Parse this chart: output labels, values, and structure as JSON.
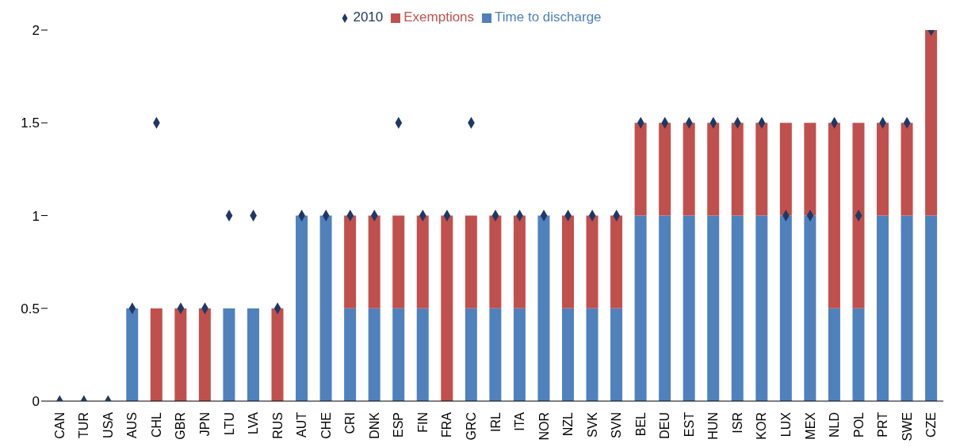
{
  "chart_data": {
    "type": "bar",
    "stacked": true,
    "categories": [
      "CAN",
      "TUR",
      "USA",
      "AUS",
      "CHL",
      "GBR",
      "JPN",
      "LTU",
      "LVA",
      "RUS",
      "AUT",
      "CHE",
      "CRI",
      "DNK",
      "ESP",
      "FIN",
      "FRA",
      "GRC",
      "IRL",
      "ITA",
      "NOR",
      "NZL",
      "SVK",
      "SVN",
      "BEL",
      "DEU",
      "EST",
      "HUN",
      "ISR",
      "KOR",
      "LUX",
      "MEX",
      "NLD",
      "POL",
      "PRT",
      "SWE",
      "CZE"
    ],
    "series": [
      {
        "name": "Time to discharge",
        "color": "#4f81bd",
        "values": [
          0,
          0,
          0,
          0.5,
          0,
          0,
          0,
          0.5,
          0.5,
          0,
          1,
          1,
          0.5,
          0.5,
          0.5,
          0.5,
          0,
          0.5,
          0.5,
          0.5,
          1,
          0.5,
          0.5,
          0.5,
          1,
          1,
          1,
          1,
          1,
          1,
          1,
          1,
          0.5,
          0.5,
          1,
          1,
          1
        ]
      },
      {
        "name": "Exemptions",
        "color": "#c0504d",
        "values": [
          0,
          0,
          0,
          0,
          0.5,
          0.5,
          0.5,
          0,
          0,
          0.5,
          0,
          0,
          0.5,
          0.5,
          0.5,
          0.5,
          1,
          0.5,
          0.5,
          0.5,
          0,
          0.5,
          0.5,
          0.5,
          0.5,
          0.5,
          0.5,
          0.5,
          0.5,
          0.5,
          0.5,
          0.5,
          1,
          1,
          0.5,
          0.5,
          1
        ]
      },
      {
        "name": "2010",
        "type": "scatter",
        "marker": "diamond",
        "color": "#1f3864",
        "values": [
          0,
          0,
          0,
          0.5,
          1.5,
          0.5,
          0.5,
          1,
          1,
          0.5,
          1,
          1,
          1,
          1,
          1.5,
          1,
          1,
          1.5,
          1,
          1,
          1,
          1,
          1,
          1,
          1.5,
          1.5,
          1.5,
          1.5,
          1.5,
          1.5,
          1,
          1,
          1.5,
          1,
          1.5,
          1.5,
          2
        ]
      }
    ],
    "ylim": [
      0,
      2
    ],
    "yticks": [
      0,
      0.5,
      1,
      1.5,
      2
    ],
    "grid": false,
    "legend": "top"
  }
}
